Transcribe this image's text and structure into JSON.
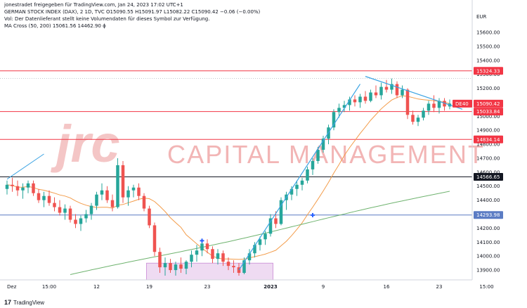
{
  "header": {
    "line1": "jonestradet freigegeben für TradingView.com, Jan 24, 2023 17:02 UTC+1",
    "line2": "GERMAN STOCK INDEX (DAX), 2 1D, TVC  O15090.55  H15091.97  L15082.22  C15090.42  −0.06 (−0.00%)",
    "line3": "Vol: Der Datenlieferant stellt keine Volumendaten für dieses Symbol zur Verfügung.",
    "line4": "MA Cross (50, 200)  15061.56  14462.90  ϕ"
  },
  "watermark": {
    "logo": "jrc",
    "text": "CAPITAL MANAGEMENT"
  },
  "currency": "EUR",
  "footer": {
    "logo": "17",
    "brand": "TradingView"
  },
  "price_tags": [
    {
      "label": "15324.33",
      "value": 15324.33,
      "color": "#f23645"
    },
    {
      "label": "DE40",
      "value": 15090.42,
      "color": "#f23645"
    },
    {
      "label": "15090.42",
      "value": 15090.42,
      "color": "#f23645"
    },
    {
      "label": "15033.84",
      "value": 15033.84,
      "color": "#f23645"
    },
    {
      "label": "14834.14",
      "value": 14834.14,
      "color": "#f23645"
    },
    {
      "label": "14566.65",
      "value": 14566.65,
      "color": "#131722"
    },
    {
      "label": "14293.98",
      "value": 14293.98,
      "color": "#5b7cc4"
    }
  ],
  "colors": {
    "up": "#26a69a",
    "down": "#ef5350",
    "ma50": "#f39c4a",
    "ma200": "#6fb36f",
    "trend": "#3aa3e3",
    "zone": "#e1bee7"
  },
  "chart_data": {
    "type": "candlestick",
    "title": "GERMAN STOCK INDEX (DAX)",
    "ylim": [
      13830,
      15620
    ],
    "y_ticks": [
      13900,
      14000,
      14100,
      14200,
      14300,
      14400,
      14500,
      14600,
      14700,
      14800,
      14900,
      15000,
      15100,
      15200,
      15300,
      15400,
      15500,
      15600
    ],
    "x_ticks": [
      "Dez",
      "15:00",
      "12",
      "19",
      "23",
      "2023",
      "9",
      "16",
      "23",
      "15:00"
    ],
    "horizontal_levels": [
      {
        "value": 15324.33,
        "color": "#f23645"
      },
      {
        "value": 15033.84,
        "color": "#f23645"
      },
      {
        "value": 14834.14,
        "color": "#f23645"
      },
      {
        "value": 14566.65,
        "color": "#131722"
      },
      {
        "value": 14293.98,
        "color": "#5b7cc4"
      }
    ],
    "dotted_level": 15270,
    "demand_zone": {
      "y_from": 13830,
      "y_to": 13950
    },
    "ma_cross_points": [
      14110,
      14293
    ],
    "candles": [
      [
        14480,
        14540,
        14440,
        14510
      ],
      [
        14510,
        14560,
        14460,
        14500
      ],
      [
        14500,
        14540,
        14430,
        14470
      ],
      [
        14470,
        14520,
        14410,
        14490
      ],
      [
        14490,
        14540,
        14450,
        14520
      ],
      [
        14520,
        14540,
        14430,
        14450
      ],
      [
        14450,
        14480,
        14380,
        14400
      ],
      [
        14400,
        14460,
        14350,
        14430
      ],
      [
        14430,
        14470,
        14360,
        14380
      ],
      [
        14380,
        14420,
        14320,
        14350
      ],
      [
        14350,
        14400,
        14290,
        14310
      ],
      [
        14310,
        14370,
        14260,
        14340
      ],
      [
        14340,
        14360,
        14240,
        14260
      ],
      [
        14260,
        14300,
        14200,
        14230
      ],
      [
        14230,
        14290,
        14180,
        14270
      ],
      [
        14270,
        14330,
        14240,
        14300
      ],
      [
        14300,
        14380,
        14260,
        14360
      ],
      [
        14360,
        14460,
        14330,
        14440
      ],
      [
        14440,
        14520,
        14400,
        14470
      ],
      [
        14470,
        14500,
        14380,
        14400
      ],
      [
        14400,
        14440,
        14320,
        14350
      ],
      [
        14350,
        14700,
        14340,
        14650
      ],
      [
        14650,
        14680,
        14380,
        14420
      ],
      [
        14420,
        14500,
        14360,
        14470
      ],
      [
        14470,
        14510,
        14420,
        14490
      ],
      [
        14490,
        14520,
        14400,
        14430
      ],
      [
        14430,
        14450,
        14320,
        14340
      ],
      [
        14340,
        14360,
        14200,
        14220
      ],
      [
        14220,
        14240,
        14000,
        14030
      ],
      [
        14030,
        14060,
        13880,
        13920
      ],
      [
        13920,
        13990,
        13860,
        13950
      ],
      [
        13950,
        13980,
        13880,
        13900
      ],
      [
        13900,
        13960,
        13860,
        13940
      ],
      [
        13940,
        13990,
        13880,
        13910
      ],
      [
        13910,
        13970,
        13870,
        13960
      ],
      [
        13960,
        14040,
        13920,
        14010
      ],
      [
        14010,
        14080,
        13960,
        14040
      ],
      [
        14040,
        14110,
        14000,
        14090
      ],
      [
        14090,
        14120,
        14020,
        14050
      ],
      [
        14050,
        14070,
        13950,
        13980
      ],
      [
        13980,
        14050,
        13940,
        14020
      ],
      [
        14020,
        14040,
        13930,
        13960
      ],
      [
        13960,
        13990,
        13900,
        13930
      ],
      [
        13930,
        13970,
        13880,
        13920
      ],
      [
        13920,
        13950,
        13860,
        13880
      ],
      [
        13880,
        13990,
        13870,
        13970
      ],
      [
        13970,
        14050,
        13940,
        14020
      ],
      [
        14020,
        14100,
        13990,
        14080
      ],
      [
        14080,
        14140,
        14040,
        14120
      ],
      [
        14120,
        14180,
        14080,
        14160
      ],
      [
        14160,
        14300,
        14140,
        14270
      ],
      [
        14270,
        14320,
        14200,
        14230
      ],
      [
        14230,
        14420,
        14220,
        14400
      ],
      [
        14400,
        14460,
        14330,
        14440
      ],
      [
        14440,
        14500,
        14400,
        14480
      ],
      [
        14480,
        14540,
        14430,
        14510
      ],
      [
        14510,
        14560,
        14470,
        14540
      ],
      [
        14540,
        14640,
        14520,
        14620
      ],
      [
        14620,
        14700,
        14580,
        14680
      ],
      [
        14680,
        14780,
        14660,
        14760
      ],
      [
        14760,
        14860,
        14740,
        14840
      ],
      [
        14840,
        14940,
        14800,
        14920
      ],
      [
        14920,
        15050,
        14900,
        15030
      ],
      [
        15030,
        15090,
        14990,
        15060
      ],
      [
        15060,
        15110,
        15030,
        15080
      ],
      [
        15080,
        15140,
        15040,
        15120
      ],
      [
        15120,
        15150,
        15070,
        15100
      ],
      [
        15100,
        15160,
        15060,
        15140
      ],
      [
        15140,
        15180,
        15090,
        15110
      ],
      [
        15110,
        15190,
        15100,
        15170
      ],
      [
        15170,
        15220,
        15130,
        15150
      ],
      [
        15150,
        15240,
        15120,
        15210
      ],
      [
        15210,
        15260,
        15170,
        15190
      ],
      [
        15190,
        15270,
        15160,
        15230
      ],
      [
        15230,
        15250,
        15130,
        15150
      ],
      [
        15150,
        15220,
        15130,
        15190
      ],
      [
        15190,
        15200,
        14980,
        15010
      ],
      [
        15010,
        15040,
        14940,
        14960
      ],
      [
        14960,
        15010,
        14930,
        14990
      ],
      [
        14990,
        15060,
        14970,
        15040
      ],
      [
        15040,
        15110,
        15010,
        15090
      ],
      [
        15090,
        15150,
        15030,
        15060
      ],
      [
        15060,
        15130,
        15020,
        15110
      ],
      [
        15110,
        15130,
        15040,
        15070
      ],
      [
        15070,
        15120,
        15050,
        15090
      ]
    ]
  }
}
